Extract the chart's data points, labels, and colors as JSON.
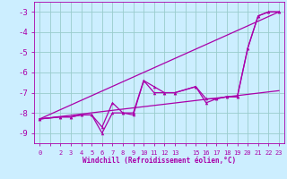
{
  "xlabel": "Windchill (Refroidissement éolien,°C)",
  "bg_color": "#cceeff",
  "grid_color": "#99cccc",
  "line_color": "#aa00aa",
  "x_ticks": [
    0,
    2,
    3,
    4,
    5,
    6,
    7,
    8,
    9,
    10,
    11,
    12,
    13,
    15,
    16,
    17,
    18,
    19,
    20,
    21,
    22,
    23
  ],
  "ylim": [
    -9.5,
    -2.5
  ],
  "xlim": [
    -0.5,
    23.5
  ],
  "yticks": [
    -9,
    -8,
    -7,
    -6,
    -5,
    -4,
    -3
  ],
  "line1_x": [
    0,
    2,
    3,
    4,
    5,
    6,
    7,
    8,
    9,
    10,
    11,
    12,
    13,
    15,
    16,
    17,
    18,
    19,
    20,
    21,
    22,
    23
  ],
  "line1_y": [
    -8.3,
    -8.2,
    -8.2,
    -8.1,
    -8.1,
    -8.7,
    -7.5,
    -8.0,
    -8.1,
    -6.4,
    -6.7,
    -7.0,
    -7.0,
    -6.7,
    -7.3,
    -7.3,
    -7.2,
    -7.2,
    -4.8,
    -3.2,
    -3.0,
    -3.0
  ],
  "line2_x": [
    0,
    2,
    3,
    4,
    5,
    6,
    7,
    8,
    9,
    10,
    11,
    12,
    13,
    15,
    16,
    17,
    18,
    19,
    20,
    21,
    22,
    23
  ],
  "line2_y": [
    -8.3,
    -8.2,
    -8.2,
    -8.1,
    -8.1,
    -9.0,
    -8.0,
    -8.0,
    -8.0,
    -6.4,
    -7.0,
    -7.0,
    -7.0,
    -6.7,
    -7.5,
    -7.3,
    -7.2,
    -7.2,
    -4.8,
    -3.2,
    -3.0,
    -3.0
  ],
  "line3_x": [
    0,
    23
  ],
  "line3_y": [
    -8.3,
    -3.0
  ],
  "line4_x": [
    0,
    23
  ],
  "line4_y": [
    -8.3,
    -6.9
  ]
}
